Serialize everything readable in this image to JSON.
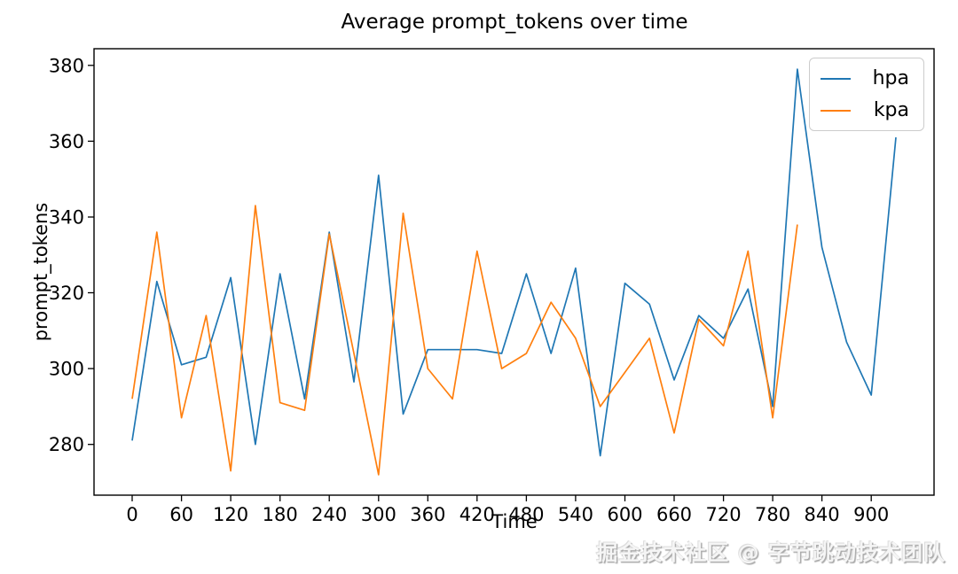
{
  "title": "Average prompt_tokens over time",
  "watermark": "掘金技术社区 @ 字节跳动技术团队",
  "colors": {
    "hpa": "#1f77b4",
    "kpa": "#ff7f0e",
    "axis": "#000000",
    "legend_border": "#cccccc"
  },
  "legend": {
    "items": [
      {
        "name": "hpa",
        "label": "hpa"
      },
      {
        "name": "kpa",
        "label": "kpa"
      }
    ]
  },
  "chart_data": {
    "type": "line",
    "title": "Average prompt_tokens over time",
    "xlabel": "Time",
    "ylabel": "prompt_tokens",
    "x_ticks": [
      0,
      60,
      120,
      180,
      240,
      300,
      360,
      420,
      480,
      540,
      600,
      660,
      720,
      780,
      840,
      900
    ],
    "y_ticks": [
      280,
      300,
      320,
      340,
      360,
      380
    ],
    "xlim": [
      -46.5,
      976.5
    ],
    "ylim": [
      266.6,
      384.4
    ],
    "grid": false,
    "legend_position": "upper right",
    "x": [
      0,
      30,
      60,
      90,
      120,
      150,
      180,
      210,
      240,
      270,
      300,
      330,
      360,
      390,
      420,
      450,
      480,
      510,
      540,
      570,
      600,
      630,
      660,
      690,
      720,
      750,
      780,
      810,
      840,
      870,
      900,
      930
    ],
    "series": [
      {
        "name": "hpa",
        "values": [
          281,
          323,
          301,
          303,
          324,
          280,
          325,
          292,
          336,
          296.5,
          351,
          288,
          305,
          305,
          305,
          304,
          325,
          304,
          326.5,
          277,
          322.5,
          317,
          297,
          314,
          308,
          321,
          290,
          379,
          332,
          307,
          293,
          361
        ]
      },
      {
        "name": "kpa",
        "values": [
          292,
          336,
          287,
          314,
          273,
          343,
          291,
          289,
          335.5,
          304,
          272,
          341,
          300,
          292,
          331,
          300,
          304,
          317.5,
          308,
          290,
          299,
          308,
          283,
          313,
          306,
          331,
          287,
          338
        ]
      }
    ]
  }
}
